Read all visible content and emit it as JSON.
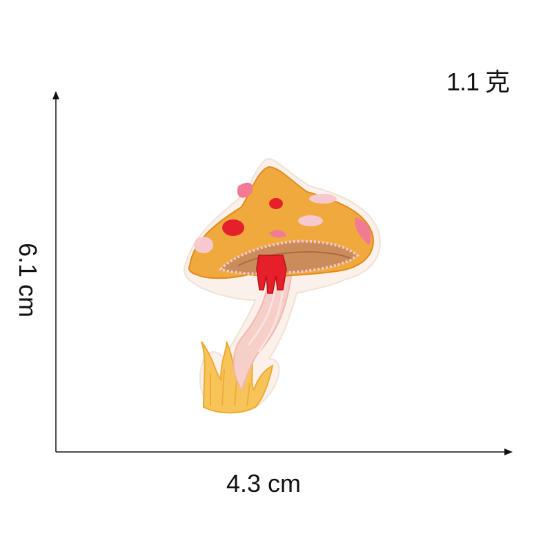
{
  "labels": {
    "weight": "1.1 克",
    "width": "4.3 cm",
    "height": "6.1 cm"
  },
  "colors": {
    "cap": "#f0a93c",
    "cap_dark": "#e08a1e",
    "spots_red": "#e5202a",
    "spots_pink": "#f27a94",
    "stem": "#f7cfc9",
    "grass": "#f7c45a",
    "axis": "#111111"
  }
}
